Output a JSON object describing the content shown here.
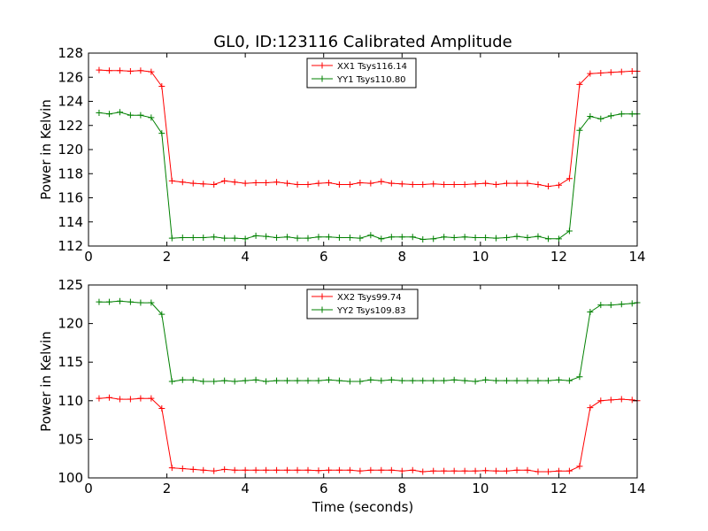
{
  "figure": {
    "title": "GL0, ID:123116 Calibrated Amplitude",
    "xlabel": "Time (seconds)"
  },
  "chart_data": [
    {
      "type": "line",
      "title": "GL0, ID:123116 Calibrated Amplitude",
      "xlabel": "",
      "ylabel": "Power in Kelvin",
      "xlim": [
        0,
        14
      ],
      "ylim": [
        112,
        128
      ],
      "xticks": [
        0,
        2,
        4,
        6,
        8,
        10,
        12,
        14
      ],
      "yticks": [
        112,
        114,
        116,
        118,
        120,
        122,
        124,
        126,
        128
      ],
      "grid": false,
      "legend_position": "top-center",
      "x": [
        0.27,
        0.53,
        0.8,
        1.07,
        1.33,
        1.6,
        1.87,
        2.13,
        2.4,
        2.67,
        2.93,
        3.2,
        3.47,
        3.73,
        4.0,
        4.27,
        4.53,
        4.8,
        5.07,
        5.33,
        5.6,
        5.87,
        6.13,
        6.4,
        6.67,
        6.93,
        7.2,
        7.47,
        7.73,
        8.0,
        8.27,
        8.53,
        8.8,
        9.07,
        9.33,
        9.6,
        9.87,
        10.13,
        10.4,
        10.67,
        10.93,
        11.2,
        11.47,
        11.73,
        12.0,
        12.27,
        12.53,
        12.8,
        13.07,
        13.33,
        13.6,
        13.87,
        14.0
      ],
      "series": [
        {
          "name": "XX1 Tsys116.14",
          "color": "#ff0000",
          "values": [
            126.6,
            126.55,
            126.55,
            126.5,
            126.55,
            126.45,
            125.25,
            117.4,
            117.3,
            117.2,
            117.15,
            117.1,
            117.4,
            117.3,
            117.2,
            117.25,
            117.25,
            117.3,
            117.2,
            117.1,
            117.1,
            117.2,
            117.25,
            117.1,
            117.1,
            117.25,
            117.2,
            117.35,
            117.2,
            117.15,
            117.1,
            117.1,
            117.15,
            117.1,
            117.1,
            117.1,
            117.15,
            117.2,
            117.1,
            117.2,
            117.2,
            117.2,
            117.1,
            116.95,
            117.05,
            117.6,
            125.4,
            126.3,
            126.35,
            126.4,
            126.45,
            126.5,
            126.5
          ]
        },
        {
          "name": "YY1 Tsys110.80",
          "color": "#008000",
          "values": [
            123.05,
            122.95,
            123.1,
            122.85,
            122.85,
            122.65,
            121.35,
            112.65,
            112.7,
            112.7,
            112.7,
            112.75,
            112.65,
            112.65,
            112.6,
            112.85,
            112.8,
            112.7,
            112.75,
            112.65,
            112.65,
            112.75,
            112.75,
            112.7,
            112.7,
            112.65,
            112.9,
            112.6,
            112.75,
            112.75,
            112.75,
            112.55,
            112.6,
            112.75,
            112.7,
            112.75,
            112.7,
            112.7,
            112.65,
            112.7,
            112.8,
            112.7,
            112.8,
            112.6,
            112.6,
            113.25,
            121.6,
            122.75,
            122.55,
            122.8,
            122.95,
            122.95,
            122.95
          ]
        }
      ]
    },
    {
      "type": "line",
      "title": "",
      "xlabel": "Time (seconds)",
      "ylabel": "Power in Kelvin",
      "xlim": [
        0,
        14
      ],
      "ylim": [
        100,
        125
      ],
      "xticks": [
        0,
        2,
        4,
        6,
        8,
        10,
        12,
        14
      ],
      "yticks": [
        100,
        105,
        110,
        115,
        120,
        125
      ],
      "grid": false,
      "legend_position": "top-center",
      "x": [
        0.27,
        0.53,
        0.8,
        1.07,
        1.33,
        1.6,
        1.87,
        2.13,
        2.4,
        2.67,
        2.93,
        3.2,
        3.47,
        3.73,
        4.0,
        4.27,
        4.53,
        4.8,
        5.07,
        5.33,
        5.6,
        5.87,
        6.13,
        6.4,
        6.67,
        6.93,
        7.2,
        7.47,
        7.73,
        8.0,
        8.27,
        8.53,
        8.8,
        9.07,
        9.33,
        9.6,
        9.87,
        10.13,
        10.4,
        10.67,
        10.93,
        11.2,
        11.47,
        11.73,
        12.0,
        12.27,
        12.53,
        12.8,
        13.07,
        13.33,
        13.6,
        13.87,
        14.0
      ],
      "series": [
        {
          "name": "XX2 Tsys99.74",
          "color": "#ff0000",
          "values": [
            110.3,
            110.4,
            110.2,
            110.2,
            110.3,
            110.3,
            109.0,
            101.3,
            101.2,
            101.1,
            101.0,
            100.9,
            101.1,
            101.0,
            101.0,
            101.0,
            101.0,
            101.0,
            101.0,
            101.0,
            101.0,
            100.95,
            101.0,
            101.0,
            101.0,
            100.9,
            101.0,
            101.0,
            101.0,
            100.9,
            101.0,
            100.8,
            100.9,
            100.9,
            100.9,
            100.9,
            100.9,
            100.95,
            100.9,
            100.9,
            101.0,
            101.0,
            100.8,
            100.8,
            100.9,
            100.9,
            101.5,
            109.1,
            110.0,
            110.1,
            110.2,
            110.1,
            110.0
          ]
        },
        {
          "name": "YY2 Tsys109.83",
          "color": "#008000",
          "values": [
            122.8,
            122.8,
            122.9,
            122.8,
            122.7,
            122.7,
            121.2,
            112.5,
            112.7,
            112.7,
            112.5,
            112.5,
            112.6,
            112.5,
            112.6,
            112.7,
            112.5,
            112.6,
            112.6,
            112.6,
            112.6,
            112.6,
            112.7,
            112.6,
            112.5,
            112.5,
            112.7,
            112.6,
            112.7,
            112.6,
            112.6,
            112.6,
            112.6,
            112.6,
            112.7,
            112.6,
            112.5,
            112.7,
            112.6,
            112.6,
            112.6,
            112.6,
            112.6,
            112.6,
            112.7,
            112.6,
            113.1,
            121.5,
            122.4,
            122.4,
            122.5,
            122.6,
            122.7
          ]
        }
      ]
    }
  ]
}
